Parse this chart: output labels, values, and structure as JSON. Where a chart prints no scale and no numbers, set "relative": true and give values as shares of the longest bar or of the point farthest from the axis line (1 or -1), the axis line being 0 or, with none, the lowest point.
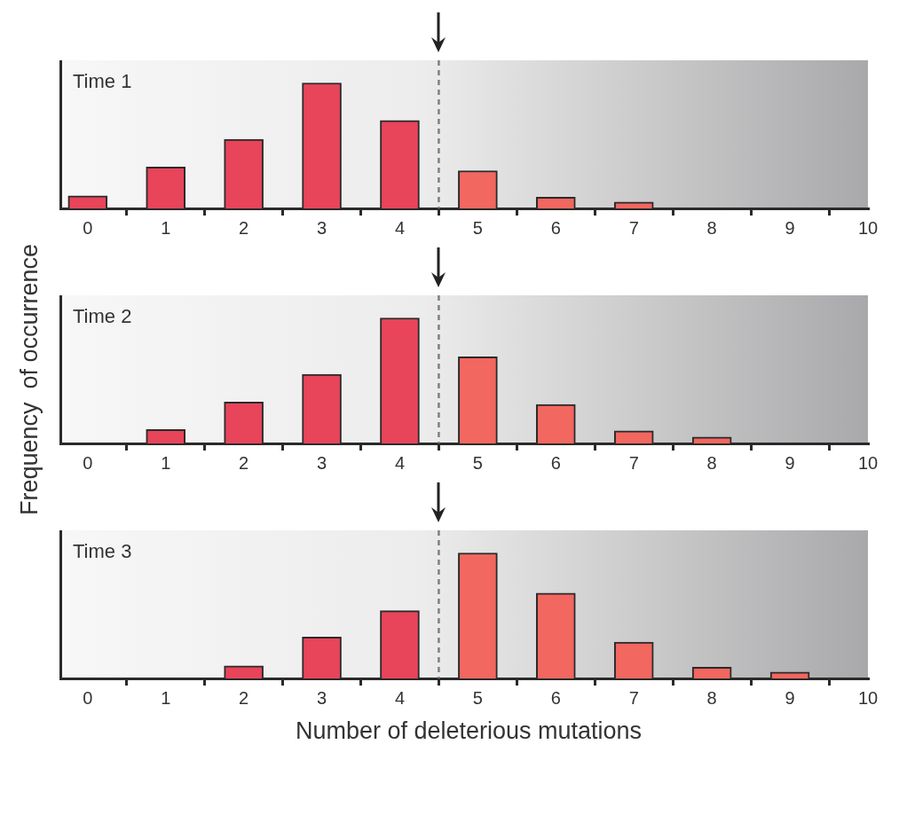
{
  "chart_data": [
    {
      "type": "bar",
      "title": "Time 1",
      "relative": true,
      "x": [
        0,
        1,
        2,
        3,
        4,
        5,
        6,
        7,
        8,
        9,
        10
      ],
      "xlim": [
        -0.35,
        10
      ],
      "xticks": [
        0,
        1,
        2,
        3,
        4,
        5,
        6,
        7,
        8,
        9,
        10
      ],
      "series": [
        {
          "values": [
            0.1,
            0.33,
            0.55,
            1,
            0.7,
            0.3,
            0.09,
            0.05,
            0,
            0,
            0
          ],
          "colors": [
            "#e8445a",
            "#e8445a",
            "#e8445a",
            "#e8445a",
            "#e8445a",
            "#f2675f",
            "#f2675f",
            "#f2675f",
            "#f2675f",
            "#f2675f",
            "#f2675f"
          ]
        }
      ],
      "ref_lines": [
        {
          "axis": "x",
          "value": 4.5,
          "color": "#808080",
          "line_style": "dashed"
        }
      ],
      "grid": false,
      "legend": false
    },
    {
      "type": "bar",
      "title": "Time 2",
      "relative": true,
      "ylabel": "Frequency  of occurrence",
      "x": [
        0,
        1,
        2,
        3,
        4,
        5,
        6,
        7,
        8,
        9,
        10
      ],
      "xlim": [
        -0.35,
        10
      ],
      "xticks": [
        0,
        1,
        2,
        3,
        4,
        5,
        6,
        7,
        8,
        9,
        10
      ],
      "series": [
        {
          "values": [
            0,
            0.11,
            0.33,
            0.55,
            1,
            0.69,
            0.31,
            0.1,
            0.05,
            0,
            0
          ],
          "colors": [
            "#e8445a",
            "#e8445a",
            "#e8445a",
            "#e8445a",
            "#e8445a",
            "#f2675f",
            "#f2675f",
            "#f2675f",
            "#f2675f",
            "#f2675f",
            "#f2675f"
          ]
        }
      ],
      "ref_lines": [
        {
          "axis": "x",
          "value": 4.5,
          "color": "#808080",
          "line_style": "dashed"
        }
      ],
      "grid": false,
      "legend": false
    },
    {
      "type": "bar",
      "title": "Time 3",
      "relative": true,
      "xlabel": "Number of deleterious mutations",
      "x": [
        0,
        1,
        2,
        3,
        4,
        5,
        6,
        7,
        8,
        9,
        10
      ],
      "xlim": [
        -0.35,
        10
      ],
      "xticks": [
        0,
        1,
        2,
        3,
        4,
        5,
        6,
        7,
        8,
        9,
        10
      ],
      "series": [
        {
          "values": [
            0,
            0,
            0.1,
            0.33,
            0.54,
            1,
            0.68,
            0.29,
            0.09,
            0.05,
            0
          ],
          "colors": [
            "#e8445a",
            "#e8445a",
            "#e8445a",
            "#e8445a",
            "#e8445a",
            "#f2675f",
            "#f2675f",
            "#f2675f",
            "#f2675f",
            "#f2675f",
            "#f2675f"
          ]
        }
      ],
      "ref_lines": [
        {
          "axis": "x",
          "value": 4.5,
          "color": "#808080",
          "line_style": "dashed"
        }
      ],
      "grid": false,
      "legend": false
    }
  ]
}
